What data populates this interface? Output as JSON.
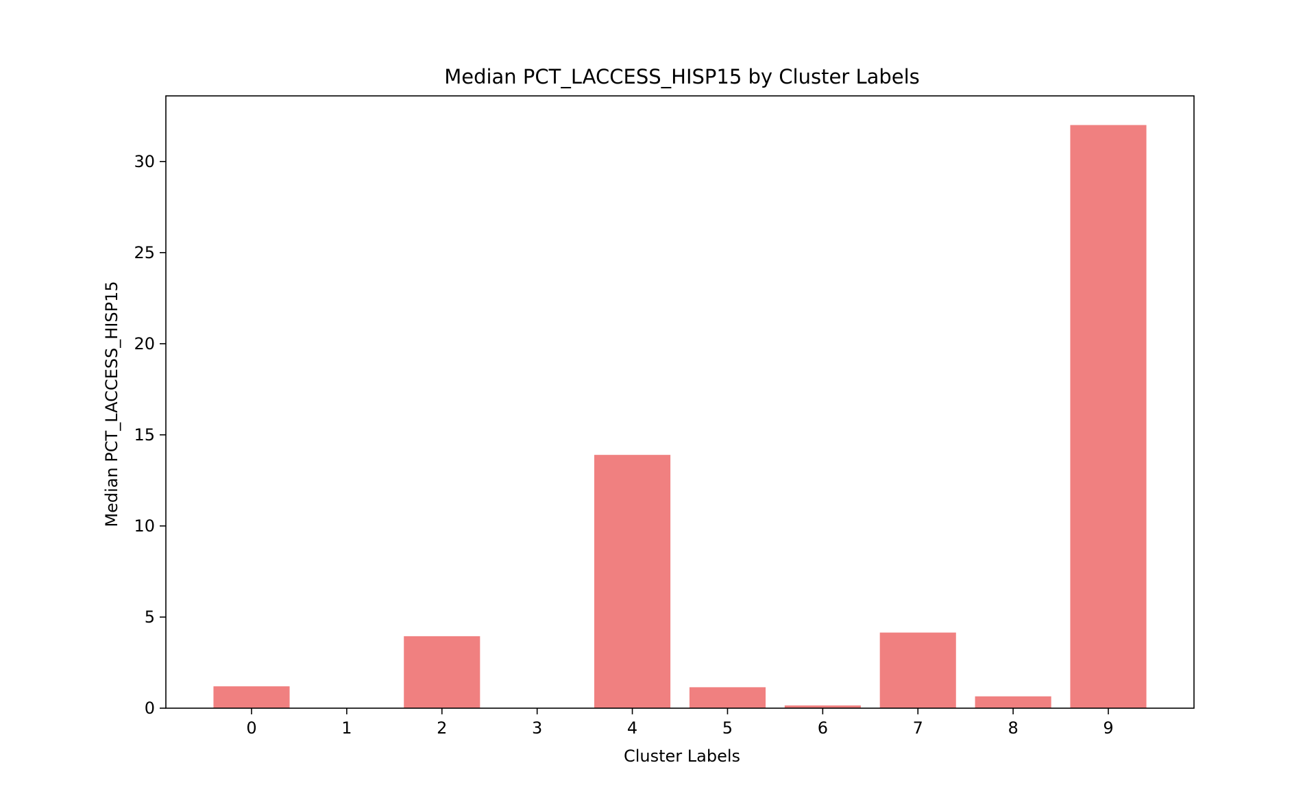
{
  "chart_data": {
    "type": "bar",
    "title": "Median PCT_LACCESS_HISP15 by Cluster Labels",
    "xlabel": "Cluster Labels",
    "ylabel": "Median PCT_LACCESS_HISP15",
    "categories": [
      "0",
      "1",
      "2",
      "3",
      "4",
      "5",
      "6",
      "7",
      "8",
      "9"
    ],
    "values": [
      1.2,
      0,
      3.95,
      0,
      13.9,
      1.15,
      0.15,
      4.15,
      0.65,
      32.0
    ],
    "ylim": [
      0,
      33.6
    ],
    "yticks": [
      0,
      5,
      10,
      15,
      20,
      25,
      30
    ],
    "bar_color": "#f08080",
    "grid": false,
    "legend": false
  }
}
